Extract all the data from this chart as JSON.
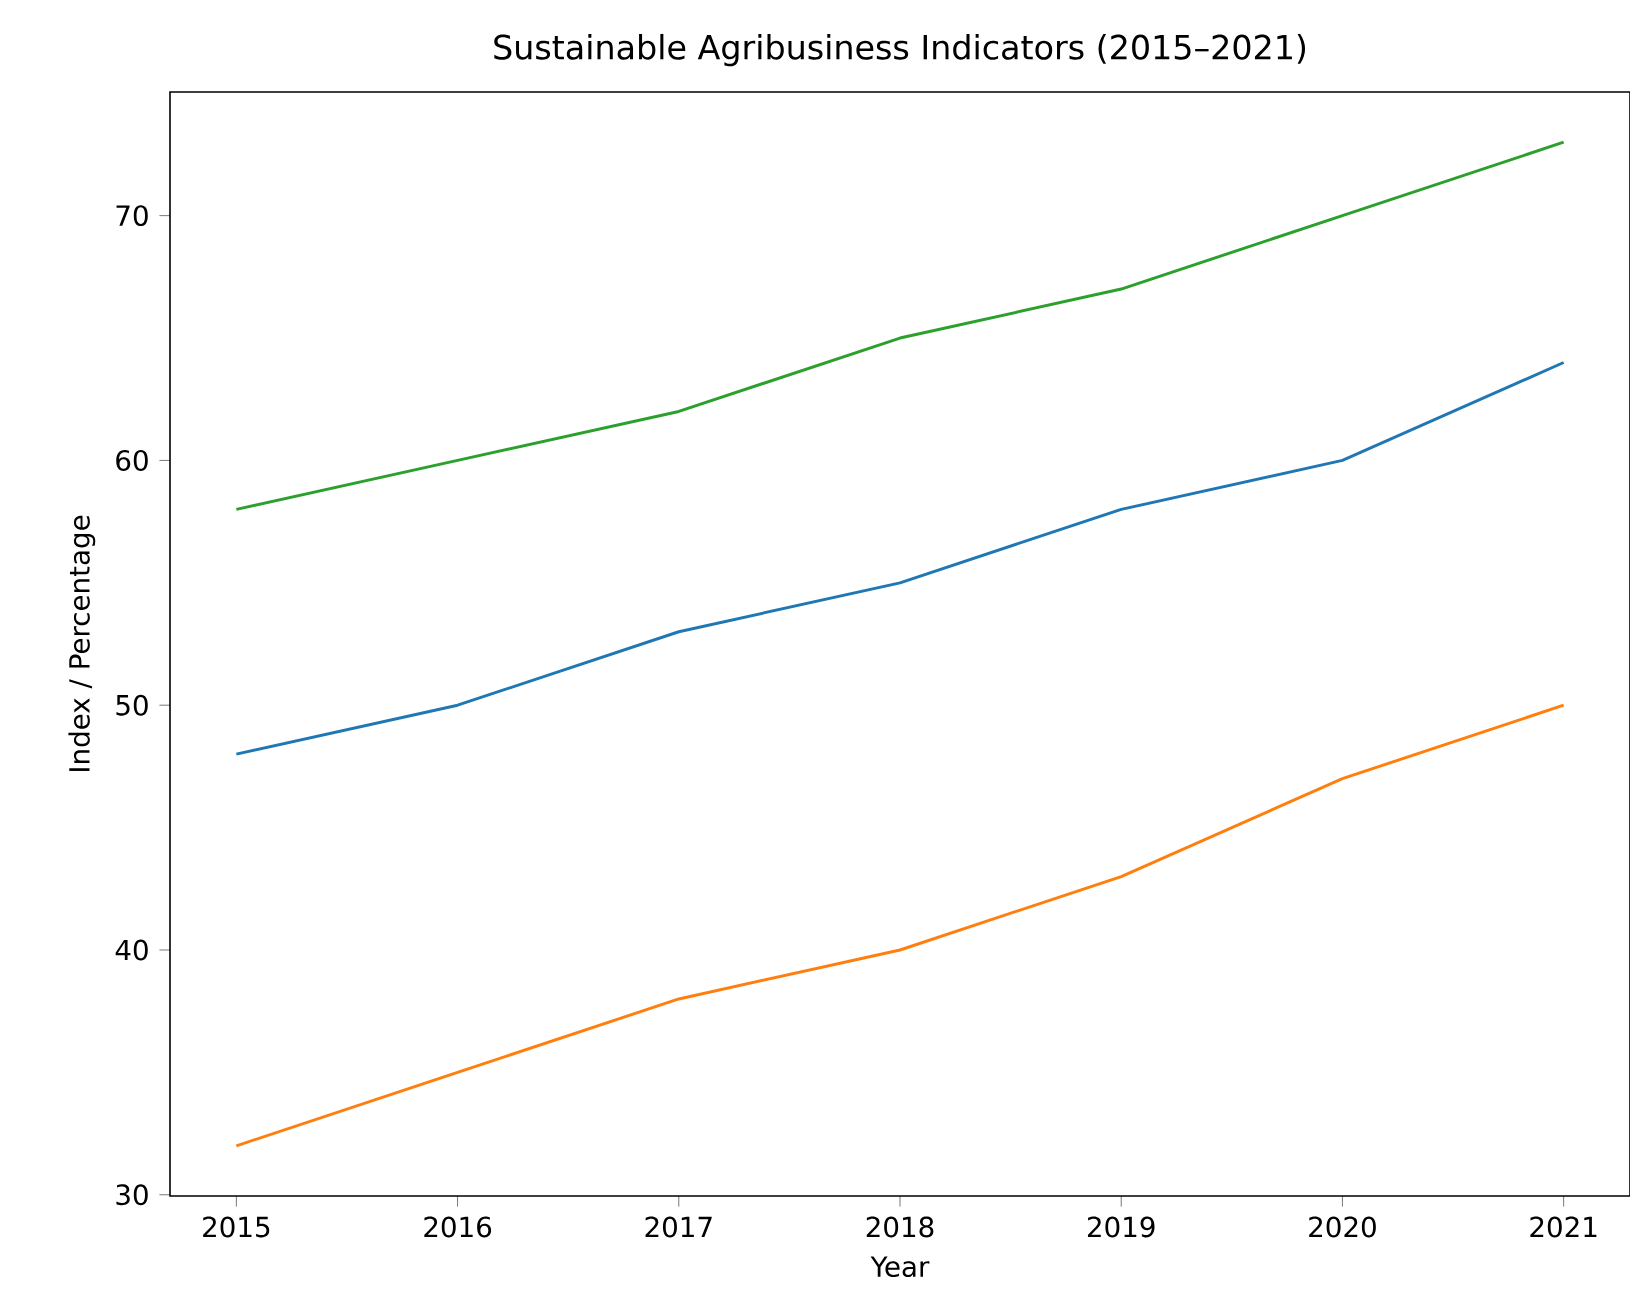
{
  "chart_data": {
    "type": "line",
    "title": "Sustainable Agribusiness Indicators (2015–2021)",
    "xlabel": "Year",
    "ylabel": "Index / Percentage",
    "x": [
      2015,
      2016,
      2017,
      2018,
      2019,
      2020,
      2021
    ],
    "series": [
      {
        "color": "#1f77b4",
        "values": [
          48,
          50,
          53,
          55,
          58,
          60,
          64
        ]
      },
      {
        "color": "#ff7f0e",
        "values": [
          32,
          35,
          38,
          40,
          43,
          47,
          50
        ]
      },
      {
        "color": "#2ca02c",
        "values": [
          58,
          60,
          62,
          65,
          67,
          70,
          73
        ]
      }
    ],
    "xlim": [
      2014.7,
      2021.3
    ],
    "ylim": [
      29.95,
      75.05
    ],
    "xticks": [
      2015,
      2016,
      2017,
      2018,
      2019,
      2020,
      2021
    ],
    "yticks": [
      30,
      40,
      50,
      60,
      70
    ],
    "grid": false,
    "marker": "none",
    "line_style": "solid"
  }
}
